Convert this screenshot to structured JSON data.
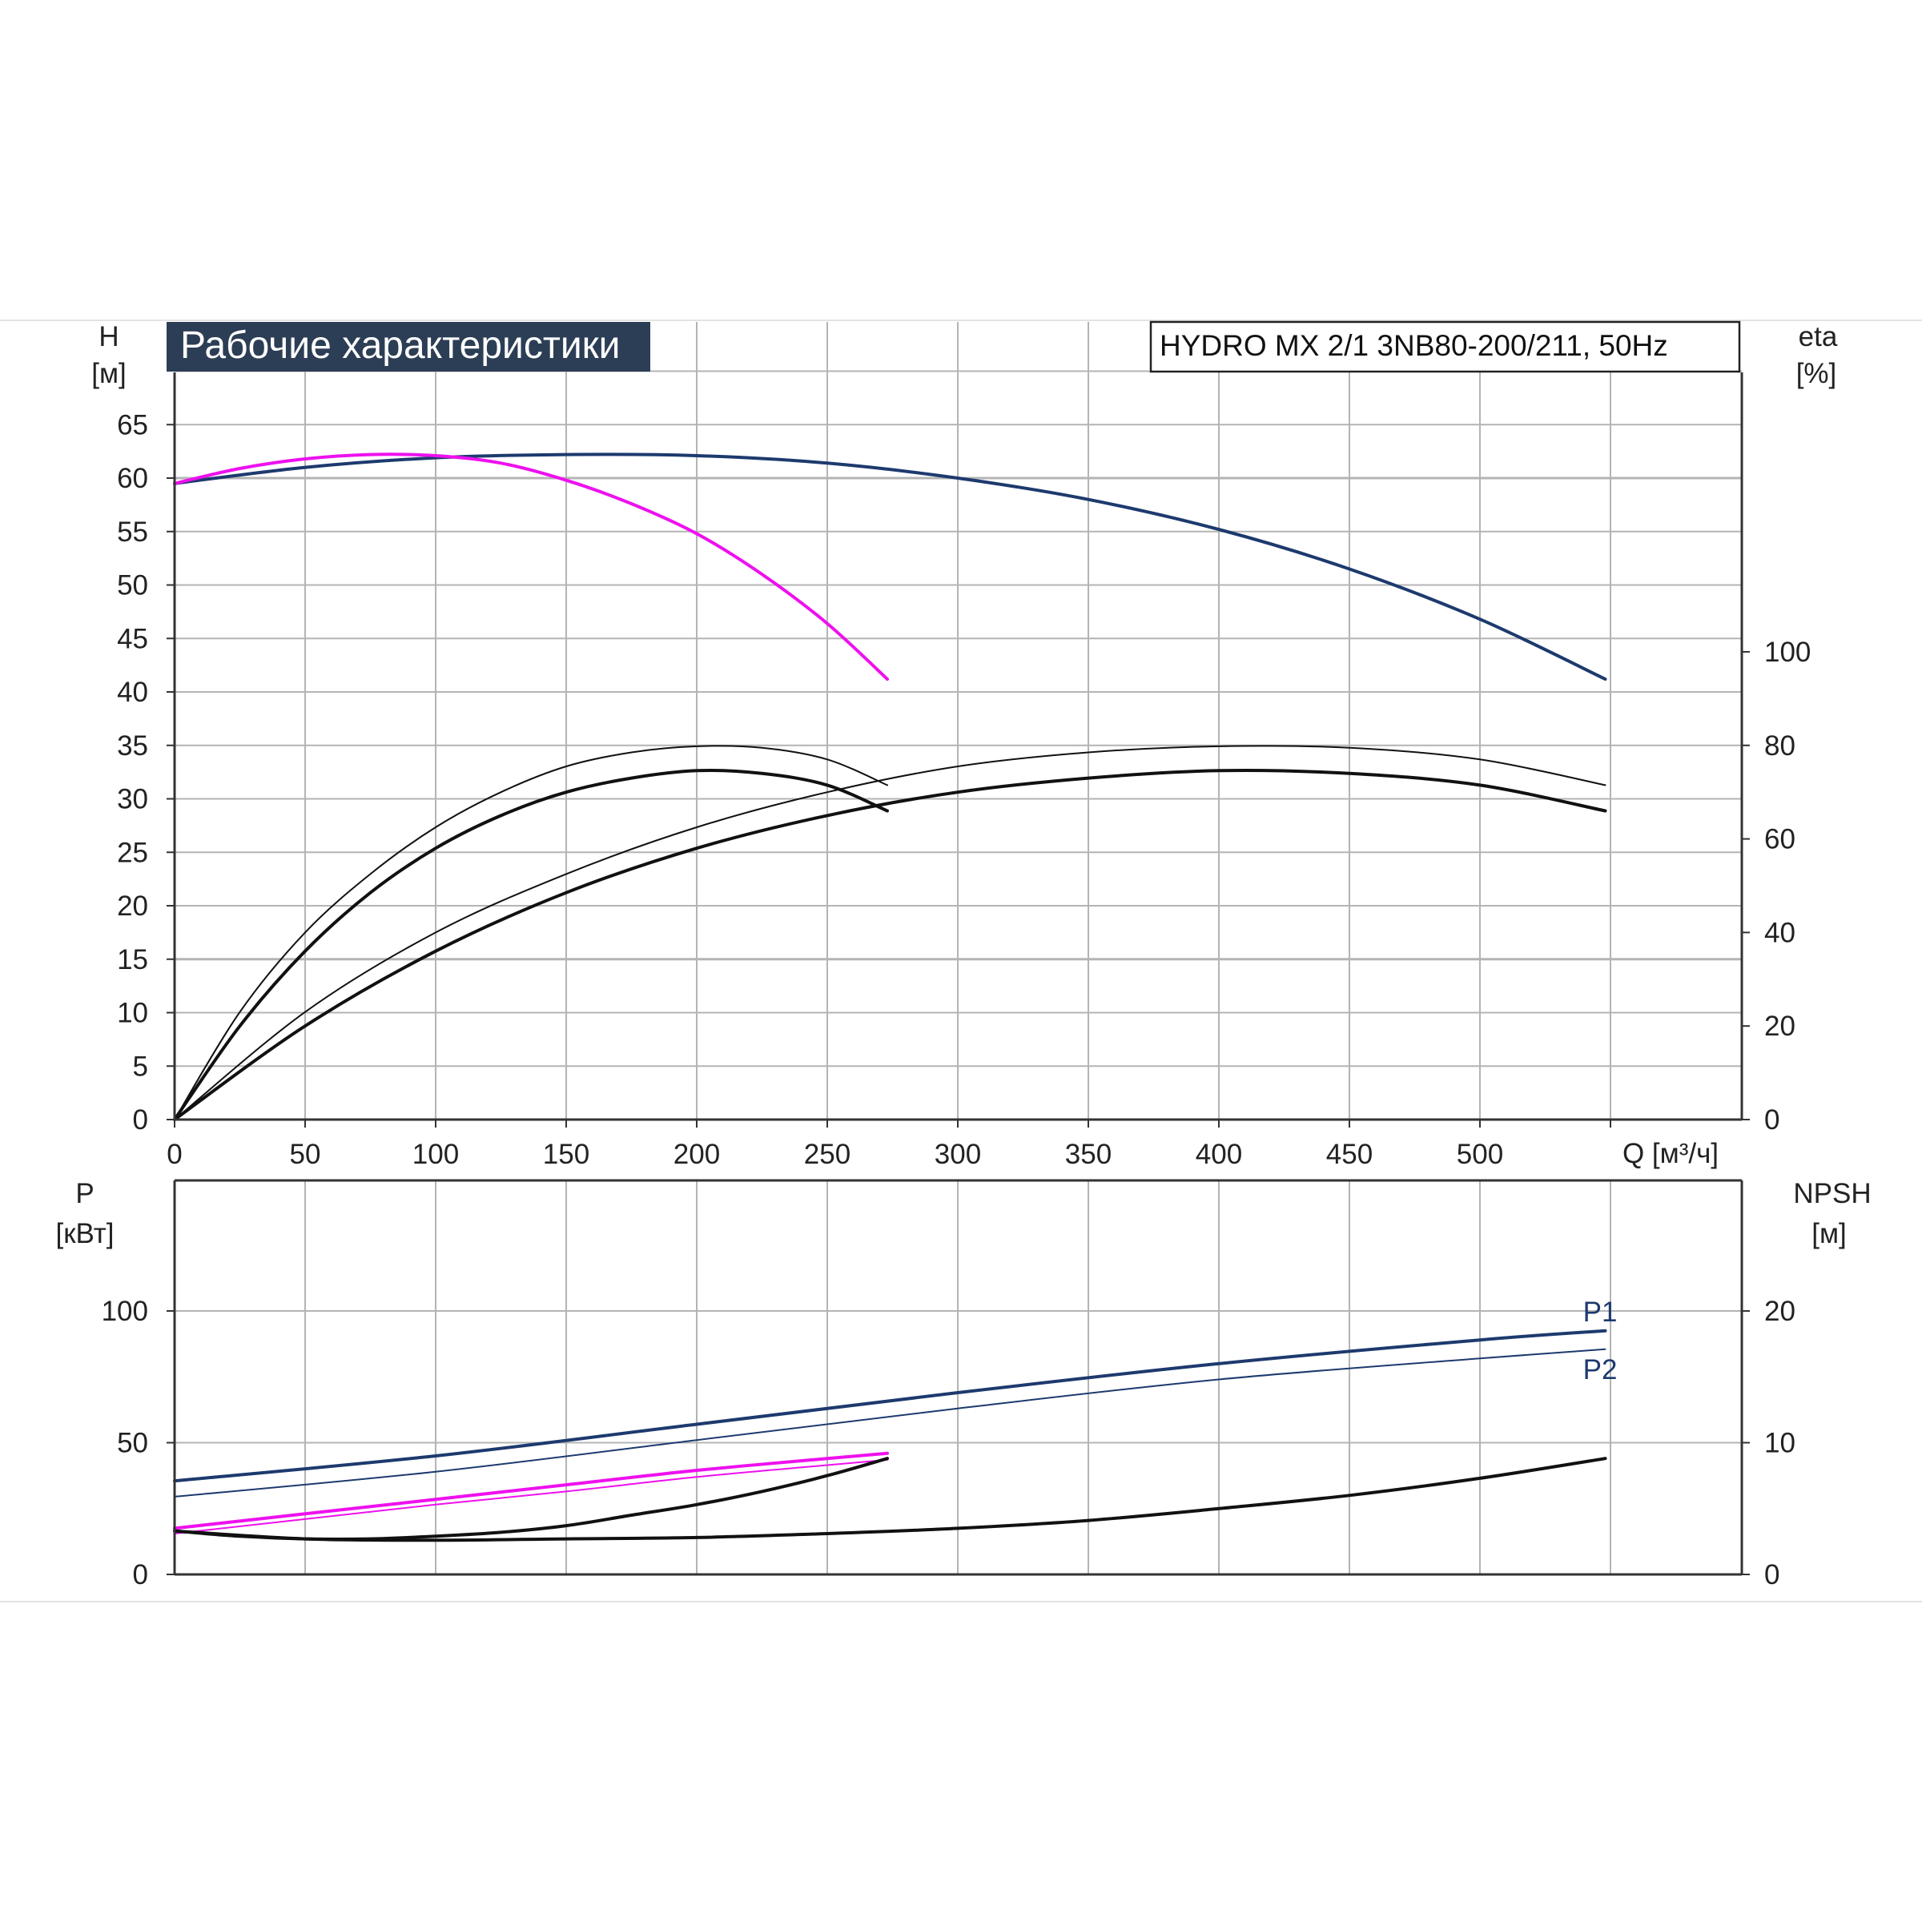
{
  "chart_data": {
    "title": "Рабочие характеристики",
    "model_label": "HYDRO MX 2/1 3NB80-200/211, 50Hz",
    "colors": {
      "title_bg": "#2c3e55",
      "navy": "#1d3a6e",
      "magenta": "#ee10ee",
      "black": "#111111",
      "grid": "#b4b4b4",
      "axis": "#333333"
    },
    "top": {
      "type": "line",
      "ylabel_left": [
        "H",
        "[м]"
      ],
      "ylabel_right": [
        "eta",
        "[%]"
      ],
      "xlabel": "Q [м³/ч]",
      "xlim": [
        0,
        600
      ],
      "ylim_left": [
        0,
        70
      ],
      "ylim_right": [
        0,
        160
      ],
      "xticks": [
        0,
        50,
        100,
        150,
        200,
        250,
        300,
        350,
        400,
        450,
        500
      ],
      "yticks_left": [
        0,
        5,
        10,
        15,
        20,
        25,
        30,
        35,
        40,
        45,
        50,
        55,
        60,
        65
      ],
      "yticks_right": [
        0,
        20,
        40,
        60,
        80,
        100
      ],
      "series": [
        {
          "axis": "left",
          "color": "navy",
          "width": 4,
          "x": [
            0,
            50,
            100,
            150,
            200,
            250,
            300,
            350,
            400,
            450,
            500,
            548
          ],
          "y": [
            59.5,
            61,
            61.9,
            62.2,
            62.1,
            61.4,
            60,
            58,
            55.2,
            51.5,
            46.8,
            41.2
          ]
        },
        {
          "axis": "left",
          "color": "magenta",
          "width": 4,
          "x": [
            0,
            25,
            50,
            75,
            100,
            125,
            150,
            175,
            200,
            225,
            250,
            273
          ],
          "y": [
            59.5,
            60.9,
            61.8,
            62.2,
            62.1,
            61.4,
            59.8,
            57.6,
            54.8,
            51,
            46.4,
            41.2
          ]
        },
        {
          "axis": "right",
          "color": "black",
          "width": 2,
          "x": [
            0,
            50,
            100,
            150,
            200,
            250,
            300,
            350,
            400,
            450,
            500,
            548
          ],
          "y": [
            0,
            23,
            40,
            52.5,
            62.5,
            70,
            75.5,
            78.5,
            79.8,
            79.5,
            77,
            71.5
          ]
        },
        {
          "axis": "right",
          "color": "black",
          "width": 4,
          "x": [
            0,
            50,
            100,
            150,
            200,
            250,
            300,
            350,
            400,
            450,
            500,
            548
          ],
          "y": [
            0,
            20,
            36,
            48.5,
            58,
            65,
            70,
            73,
            74.6,
            74,
            71.5,
            66
          ]
        },
        {
          "axis": "right",
          "color": "black",
          "width": 2,
          "x": [
            0,
            25,
            50,
            75,
            100,
            125,
            150,
            175,
            200,
            225,
            250,
            273
          ],
          "y": [
            0,
            23,
            40,
            52.5,
            62.5,
            70,
            75.5,
            78.5,
            79.8,
            79.5,
            77,
            71.5
          ]
        },
        {
          "axis": "right",
          "color": "black",
          "width": 4,
          "x": [
            0,
            25,
            50,
            75,
            100,
            125,
            150,
            175,
            200,
            225,
            250,
            273
          ],
          "y": [
            0,
            20,
            36,
            48.5,
            58,
            65,
            70,
            73,
            74.6,
            74,
            71.5,
            66
          ]
        }
      ]
    },
    "bottom": {
      "type": "line",
      "ylabel_left": [
        "P",
        "[кВт]"
      ],
      "ylabel_right": [
        "NPSH",
        "[м]"
      ],
      "xlim": [
        0,
        600
      ],
      "ylim_left": [
        0,
        150
      ],
      "ylim_right": [
        0,
        30
      ],
      "yticks_left": [
        0,
        50,
        100
      ],
      "yticks_right": [
        0,
        10,
        20
      ],
      "series": [
        {
          "name": "P1",
          "axis": "left",
          "color": "navy",
          "width": 4,
          "x": [
            0,
            100,
            200,
            300,
            400,
            500,
            548
          ],
          "y": [
            35.5,
            45,
            57,
            69,
            80,
            89,
            92.5
          ]
        },
        {
          "name": "P2",
          "axis": "left",
          "color": "navy",
          "width": 2,
          "x": [
            0,
            100,
            200,
            300,
            400,
            500,
            548
          ],
          "y": [
            29.5,
            39,
            51,
            63,
            74,
            82,
            85.5
          ]
        },
        {
          "axis": "left",
          "color": "magenta",
          "width": 4,
          "x": [
            0,
            50,
            100,
            150,
            200,
            250,
            273
          ],
          "y": [
            17.5,
            23,
            28.5,
            34,
            39.5,
            44,
            46
          ]
        },
        {
          "axis": "left",
          "color": "magenta",
          "width": 2,
          "x": [
            0,
            50,
            100,
            150,
            200,
            250,
            273
          ],
          "y": [
            15.5,
            21,
            26.5,
            31.5,
            37,
            41.5,
            43.5
          ]
        },
        {
          "axis": "right",
          "color": "black",
          "width": 4,
          "x": [
            0,
            50,
            100,
            150,
            200,
            250,
            300,
            350,
            400,
            450,
            500,
            548
          ],
          "y": [
            3.3,
            2.7,
            2.6,
            2.7,
            2.8,
            3.1,
            3.5,
            4.1,
            5,
            6,
            7.3,
            8.8
          ]
        },
        {
          "axis": "right",
          "color": "black",
          "width": 4,
          "x": [
            0,
            25,
            50,
            75,
            100,
            125,
            150,
            175,
            200,
            225,
            250,
            273
          ],
          "y": [
            3.3,
            2.9,
            2.7,
            2.7,
            2.9,
            3.2,
            3.7,
            4.5,
            5.3,
            6.3,
            7.5,
            8.8
          ]
        }
      ]
    }
  }
}
